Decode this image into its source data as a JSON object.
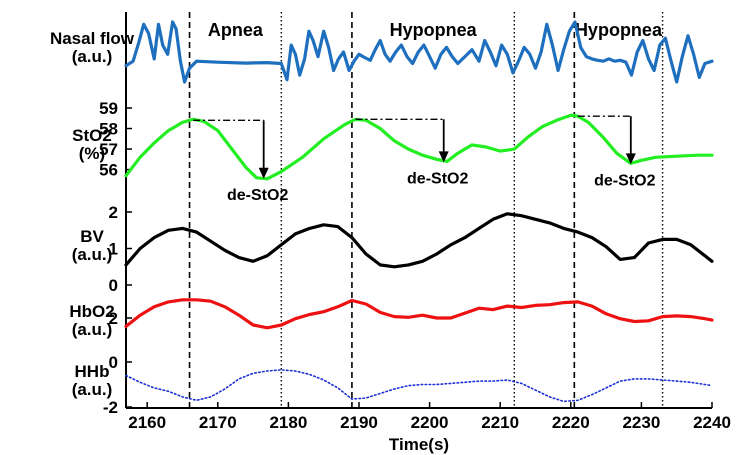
{
  "chart_data": {
    "type": "line",
    "xlabel": "Time(s)",
    "xlim": [
      2157,
      2240
    ],
    "xticks": [
      2160,
      2170,
      2180,
      2190,
      2200,
      2210,
      2220,
      2230,
      2240
    ],
    "events": {
      "labels": [
        "Apnea",
        "Hypopnea",
        "Hypopnea"
      ],
      "onset_dashed": [
        2166,
        2189,
        2220.5
      ],
      "offset_dotted": [
        2179,
        2212,
        2233
      ]
    },
    "panels": [
      {
        "ylabel": [
          "Nasal flow",
          "(a.u.)"
        ],
        "color": "#1f6fbf",
        "line_style": "solid",
        "series": {
          "x": [
            2157,
            2158,
            2158.8,
            2159.5,
            2160.2,
            2161,
            2161.6,
            2162.2,
            2162.9,
            2163.6,
            2164.1,
            2164.7,
            2165.3,
            2166,
            2167,
            2170,
            2174,
            2177,
            2179,
            2179.8,
            2180.4,
            2181,
            2181.6,
            2182.3,
            2182.9,
            2183.5,
            2184.2,
            2185,
            2185.7,
            2186.4,
            2187.1,
            2187.8,
            2188.6,
            2189.3,
            2190,
            2190.8,
            2191.6,
            2192.3,
            2193,
            2193.7,
            2194.4,
            2195.2,
            2196,
            2196.8,
            2197.6,
            2198.4,
            2199.2,
            2200,
            2200.8,
            2201.6,
            2202.4,
            2203.2,
            2204,
            2205,
            2206,
            2207,
            2207.8,
            2208.6,
            2209.4,
            2210.2,
            2211,
            2211.8,
            2212.6,
            2213.4,
            2214.2,
            2215,
            2215.8,
            2216.6,
            2217.4,
            2218.2,
            2219,
            2219.8,
            2220.6,
            2221.4,
            2222.2,
            2223,
            2223.8,
            2224.6,
            2225.4,
            2226.2,
            2227,
            2227.8,
            2228.6,
            2229.4,
            2230.2,
            2231,
            2231.8,
            2232.6,
            2233.4,
            2234.2,
            2235,
            2235.8,
            2236.6,
            2237.4,
            2238.2,
            2239,
            2240
          ],
          "y": [
            0.0,
            0.1,
            0.5,
            0.9,
            0.7,
            0.15,
            0.9,
            0.45,
            0.25,
            0.95,
            0.8,
            0.1,
            -0.35,
            -0.05,
            0.1,
            0.08,
            0.06,
            0.07,
            0.05,
            -0.3,
            0.45,
            0.25,
            -0.2,
            0.15,
            0.75,
            0.55,
            0.2,
            0.75,
            0.4,
            -0.1,
            0.15,
            0.3,
            -0.1,
            0.1,
            0.25,
            0.18,
            0.12,
            0.35,
            0.55,
            0.25,
            0.1,
            0.3,
            0.45,
            0.2,
            0.05,
            0.3,
            0.45,
            0.2,
            -0.05,
            0.25,
            0.4,
            0.2,
            0.05,
            0.2,
            0.35,
            0.1,
            0.55,
            0.3,
            0.0,
            0.45,
            0.25,
            -0.15,
            0.1,
            0.4,
            0.25,
            -0.05,
            0.3,
            0.9,
            0.45,
            -0.1,
            0.35,
            0.75,
            0.95,
            0.4,
            0.2,
            0.15,
            0.12,
            0.1,
            0.15,
            0.1,
            0.12,
            0.08,
            -0.2,
            0.3,
            0.55,
            0.15,
            -0.1,
            0.45,
            0.6,
            0.1,
            -0.35,
            0.2,
            0.65,
            0.25,
            -0.25,
            0.05,
            0.1
          ]
        }
      },
      {
        "ylabel": [
          "StO2",
          "(%)"
        ],
        "yticks": [
          56,
          57,
          58,
          59
        ],
        "ylim": [
          55.2,
          59
        ],
        "color": "#22ee22",
        "line_style": "solid",
        "series": {
          "x": [
            2157,
            2159,
            2161,
            2163,
            2165,
            2166.5,
            2168,
            2170,
            2172,
            2174,
            2175.5,
            2177,
            2179,
            2182,
            2185,
            2188,
            2189.5,
            2191,
            2193,
            2195,
            2197,
            2199,
            2201,
            2202.5,
            2204,
            2206,
            2208,
            2210,
            2212,
            2214,
            2216,
            2218,
            2220,
            2221,
            2222.5,
            2224.5,
            2226.5,
            2228.5,
            2230,
            2232,
            2235,
            2238,
            2240
          ],
          "y": [
            55.7,
            56.6,
            57.3,
            57.9,
            58.3,
            58.45,
            58.35,
            57.9,
            57.0,
            56.1,
            55.6,
            55.55,
            55.9,
            56.6,
            57.5,
            58.2,
            58.45,
            58.4,
            58.0,
            57.4,
            57.0,
            56.7,
            56.5,
            56.4,
            56.8,
            57.2,
            57.1,
            56.9,
            57.0,
            57.6,
            58.1,
            58.4,
            58.65,
            58.6,
            58.3,
            57.6,
            56.8,
            56.3,
            56.45,
            56.6,
            56.65,
            56.7,
            56.7
          ]
        },
        "annotations": [
          {
            "text": "de-StO2",
            "from": [
              2166.5,
              58.4
            ],
            "to": [
              2176.5,
              55.6
            ]
          },
          {
            "text": "de-StO2",
            "from": [
              2189.5,
              58.45
            ],
            "to": [
              2202,
              56.4
            ]
          },
          {
            "text": "de-StO2",
            "from": [
              2221,
              58.6
            ],
            "to": [
              2228.5,
              56.3
            ]
          }
        ]
      },
      {
        "ylabel": [
          "BV",
          "(a.u.)"
        ],
        "yticks": [
          0,
          1,
          2
        ],
        "ylim": [
          0,
          2
        ],
        "color": "#000000",
        "line_style": "solid",
        "series": {
          "x": [
            2157,
            2159,
            2161,
            2163,
            2165,
            2167,
            2169,
            2171,
            2173,
            2175,
            2177,
            2179,
            2181,
            2183,
            2185,
            2187,
            2189,
            2191,
            2193,
            2195,
            2197,
            2199,
            2201,
            2203,
            2205,
            2207,
            2209,
            2211,
            2213,
            2215,
            2217,
            2219,
            2221,
            2223,
            2225,
            2227,
            2229,
            2231,
            2233,
            2235,
            2237,
            2239,
            2240
          ],
          "y": [
            0.55,
            1.0,
            1.3,
            1.5,
            1.55,
            1.45,
            1.2,
            0.95,
            0.75,
            0.65,
            0.8,
            1.1,
            1.4,
            1.55,
            1.65,
            1.6,
            1.3,
            0.85,
            0.55,
            0.5,
            0.55,
            0.65,
            0.85,
            1.1,
            1.3,
            1.55,
            1.8,
            1.95,
            1.9,
            1.8,
            1.7,
            1.55,
            1.45,
            1.3,
            1.05,
            0.7,
            0.75,
            1.15,
            1.25,
            1.25,
            1.1,
            0.8,
            0.65
          ]
        }
      },
      {
        "ylabel": [
          "HbO2",
          "(a.u.)"
        ],
        "yticks": [
          2
        ],
        "ylim": [
          0,
          3.5
        ],
        "color": "#ee1111",
        "line_style": "solid",
        "series": {
          "x": [
            2157,
            2159,
            2161,
            2163,
            2165,
            2167,
            2169,
            2171,
            2173,
            2175,
            2177,
            2179,
            2181,
            2183,
            2185,
            2187,
            2189,
            2191,
            2193,
            2195,
            2197,
            2199,
            2201,
            2203,
            2205,
            2207,
            2209,
            2211,
            2213,
            2215,
            2217,
            2219,
            2221,
            2223,
            2225,
            2227,
            2229,
            2231,
            2233,
            2235,
            2237,
            2239,
            2240
          ],
          "y": [
            1.4,
            2.2,
            2.8,
            3.15,
            3.3,
            3.3,
            3.2,
            2.8,
            2.2,
            1.5,
            1.3,
            1.5,
            1.95,
            2.25,
            2.45,
            2.8,
            3.25,
            3.0,
            2.4,
            2.1,
            2.05,
            2.2,
            2.0,
            2.0,
            2.35,
            2.7,
            2.6,
            2.85,
            2.75,
            2.9,
            2.95,
            3.1,
            3.15,
            2.85,
            2.3,
            1.95,
            1.75,
            1.8,
            2.1,
            2.15,
            2.1,
            1.95,
            1.85
          ]
        }
      },
      {
        "ylabel": [
          "HHb",
          "(a.u.)"
        ],
        "yticks": [
          0,
          -2
        ],
        "ylim": [
          -2,
          0
        ],
        "color": "#1a2fd6",
        "line_style": "dotted",
        "series": {
          "x": [
            2157,
            2159,
            2161,
            2163,
            2165,
            2167,
            2169,
            2171,
            2173,
            2175,
            2177,
            2179,
            2181,
            2183,
            2185,
            2187,
            2189,
            2191,
            2193,
            2195,
            2197,
            2199,
            2201,
            2203,
            2205,
            2207,
            2209,
            2211,
            2213,
            2215,
            2217,
            2219,
            2221,
            2223,
            2225,
            2227,
            2229,
            2231,
            2233,
            2235,
            2237,
            2239,
            2240
          ],
          "y": [
            -0.6,
            -0.9,
            -1.15,
            -1.3,
            -1.55,
            -1.7,
            -1.55,
            -1.2,
            -0.75,
            -0.5,
            -0.4,
            -0.35,
            -0.4,
            -0.55,
            -0.8,
            -1.15,
            -1.65,
            -1.6,
            -1.4,
            -1.2,
            -1.05,
            -1.0,
            -1.0,
            -0.95,
            -0.9,
            -0.85,
            -0.85,
            -0.8,
            -0.95,
            -1.25,
            -1.55,
            -1.75,
            -1.7,
            -1.45,
            -1.15,
            -0.85,
            -0.75,
            -0.75,
            -0.8,
            -0.85,
            -0.9,
            -1.0,
            -1.05
          ]
        }
      }
    ]
  }
}
